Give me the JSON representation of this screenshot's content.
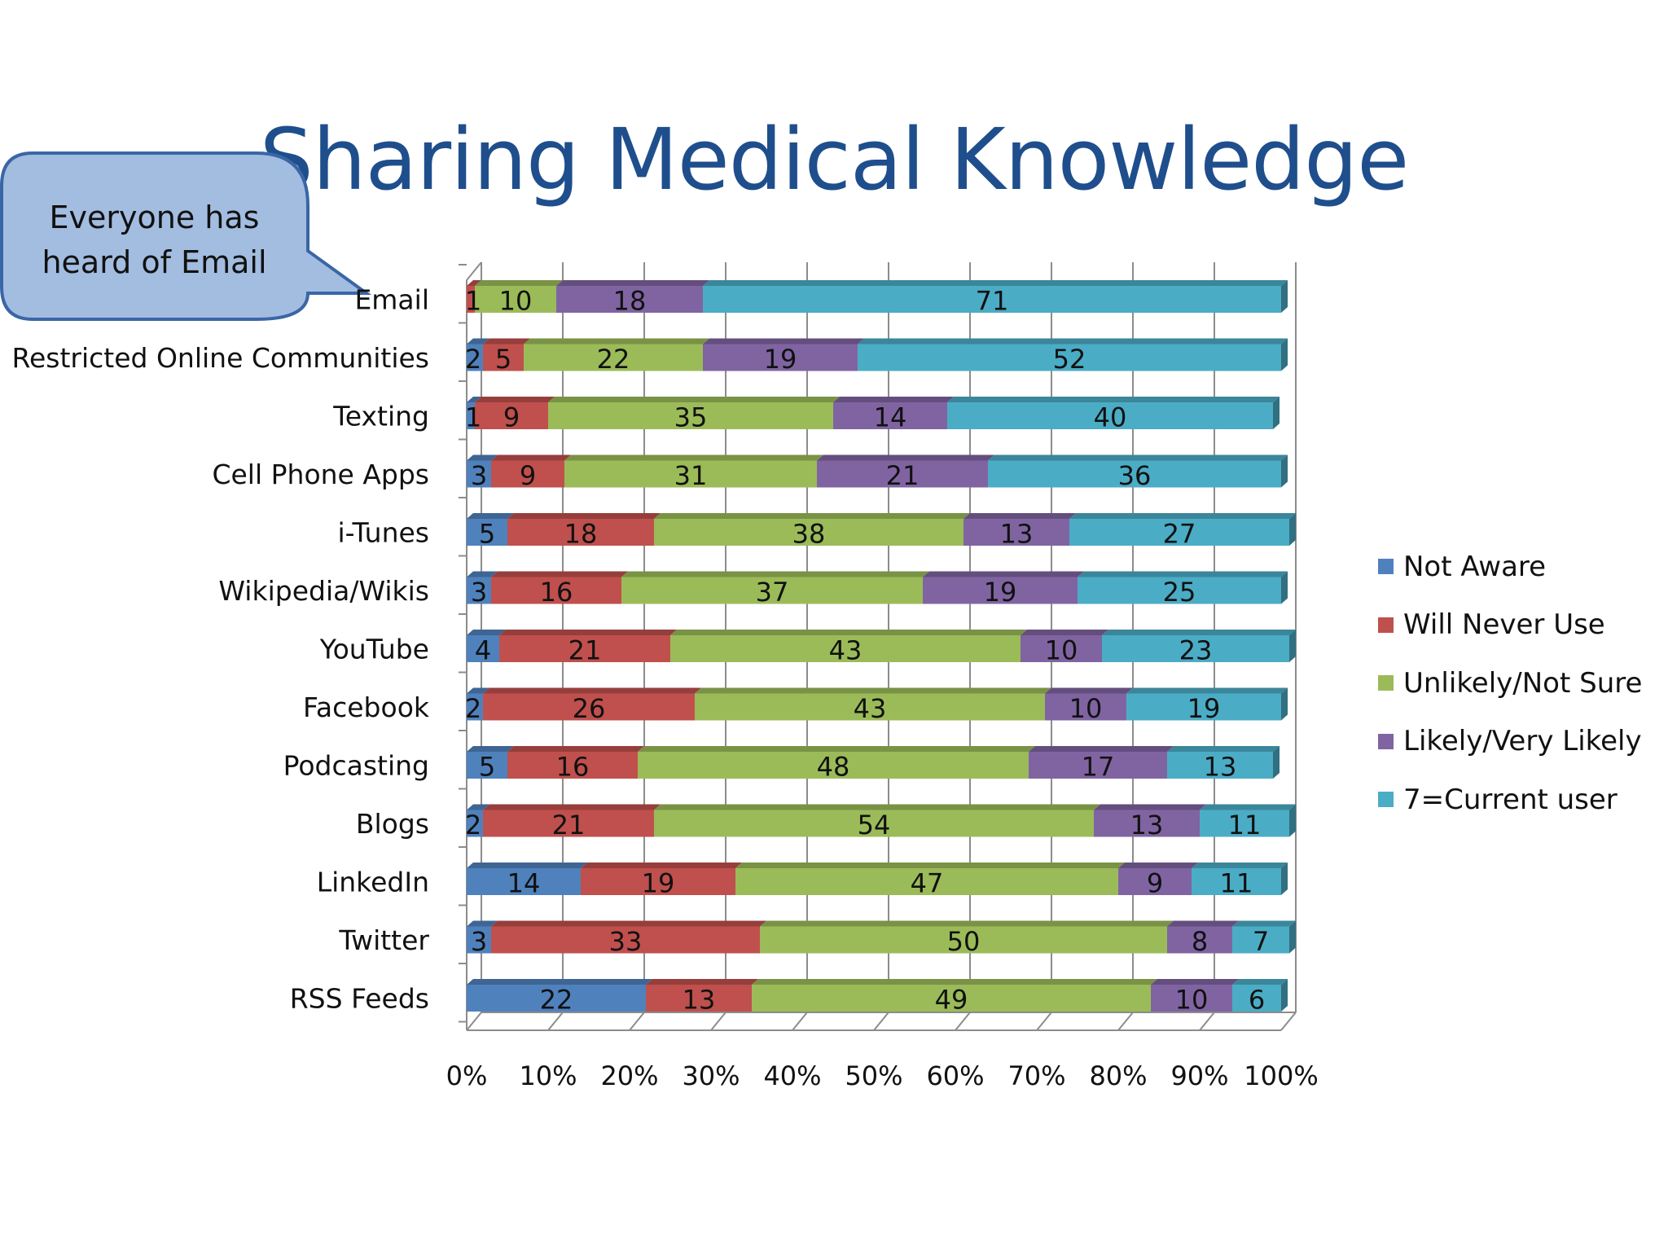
{
  "slide": {
    "title": "Sharing Medical Knowledge"
  },
  "callout": {
    "line1": "Everyone has",
    "line2": "heard of Email"
  },
  "colors": {
    "Not Aware": "#4f81bd",
    "Will Never Use": "#c0504d",
    "Unlikely/Not Sure": "#9bbb59",
    "Likely/Very Likely": "#8064a2",
    "7=Current user": "#4bacc6"
  },
  "legend": [
    "Not Aware",
    "Will Never Use",
    "Unlikely/Not Sure",
    "Likely/Very Likely",
    "7=Current user"
  ],
  "chart_data": {
    "type": "bar",
    "orientation": "horizontal",
    "stacking": "percent",
    "style": "3d",
    "title": "",
    "categories": [
      "Email",
      "Restricted Online Communities",
      "Texting",
      "Cell Phone Apps",
      "i-Tunes",
      "Wikipedia/Wikis",
      "YouTube",
      "Facebook",
      "Podcasting",
      "Blogs",
      "LinkedIn",
      "Twitter",
      "RSS Feeds"
    ],
    "series": [
      {
        "name": "Not Aware",
        "values": [
          0,
          2,
          1,
          3,
          5,
          3,
          4,
          2,
          5,
          2,
          14,
          3,
          22
        ]
      },
      {
        "name": "Will Never Use",
        "values": [
          1,
          5,
          9,
          9,
          18,
          16,
          21,
          26,
          16,
          21,
          19,
          33,
          13
        ]
      },
      {
        "name": "Unlikely/Not Sure",
        "values": [
          10,
          22,
          35,
          31,
          38,
          37,
          43,
          43,
          48,
          54,
          47,
          50,
          49
        ]
      },
      {
        "name": "Likely/Very Likely",
        "values": [
          18,
          19,
          14,
          21,
          13,
          19,
          10,
          10,
          17,
          13,
          9,
          8,
          10
        ]
      },
      {
        "name": "7=Current user",
        "values": [
          71,
          52,
          40,
          36,
          27,
          25,
          23,
          19,
          13,
          11,
          11,
          7,
          6
        ]
      }
    ],
    "labels": [
      [
        "",
        "1",
        "10",
        "18",
        "71"
      ],
      [
        "2",
        "5",
        "22",
        "19",
        "52"
      ],
      [
        "1",
        "9",
        "35",
        "14",
        "40"
      ],
      [
        "3",
        "9",
        "31",
        "21",
        "36"
      ],
      [
        "5",
        "18",
        "38",
        "13",
        "27"
      ],
      [
        "3",
        "16",
        "37",
        "19",
        "25"
      ],
      [
        "4",
        "21",
        "43",
        "10",
        "23"
      ],
      [
        "2",
        "26",
        "43",
        "10",
        "19"
      ],
      [
        "5",
        "16",
        "48",
        "17",
        "13"
      ],
      [
        "2",
        "21",
        "54",
        "13",
        "11"
      ],
      [
        "14",
        "19",
        "47",
        "9",
        "11"
      ],
      [
        "3",
        "33",
        "50",
        "8",
        "7"
      ],
      [
        "22",
        "13",
        "49",
        "10",
        "6"
      ]
    ],
    "x_ticks": [
      "0%",
      "10%",
      "20%",
      "30%",
      "40%",
      "50%",
      "60%",
      "70%",
      "80%",
      "90%",
      "100%"
    ],
    "xlim": [
      0,
      100
    ],
    "grid": true,
    "legend_position": "right"
  }
}
